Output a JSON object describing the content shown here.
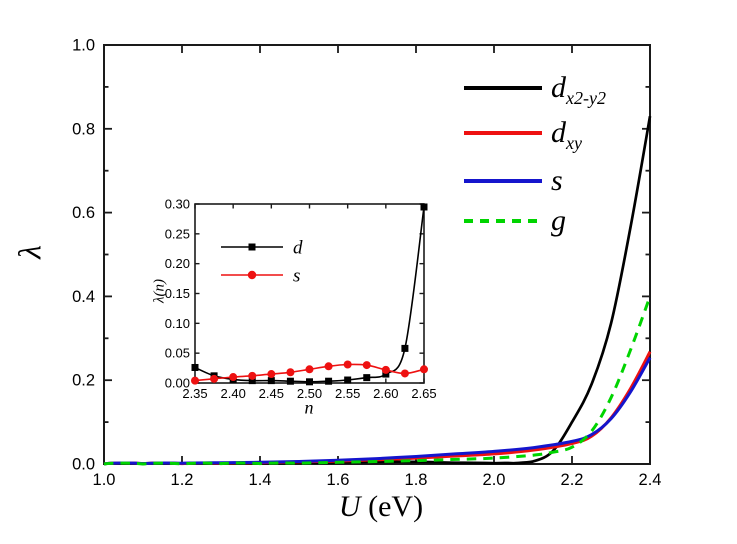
{
  "figure": {
    "background": "#ffffff",
    "axis_color": "#1a1a1a",
    "main": {
      "xlabel_italic": "U",
      "xlabel_roman": " (eV)",
      "ylabel": "λ",
      "x_ticks": [
        "1.0",
        "1.2",
        "1.4",
        "1.6",
        "1.8",
        "2.0",
        "2.2",
        "2.4"
      ],
      "y_ticks": [
        "0.0",
        "0.2",
        "0.4",
        "0.6",
        "0.8",
        "1.0"
      ],
      "legend": [
        {
          "label_main": "d",
          "label_sub": "x2-y2",
          "color": "#000000",
          "dash": "solid"
        },
        {
          "label_main": "d",
          "label_sub": "xy",
          "color": "#ee1111",
          "dash": "solid"
        },
        {
          "label_main": "s",
          "label_sub": "",
          "color": "#1515cd",
          "dash": "solid"
        },
        {
          "label_main": "g",
          "label_sub": "",
          "color": "#00d400",
          "dash": "dashed"
        }
      ]
    },
    "inset": {
      "xlabel": "n",
      "ylabel": "λ(n)",
      "x_ticks": [
        "2.35",
        "2.40",
        "2.45",
        "2.50",
        "2.55",
        "2.60",
        "2.65"
      ],
      "y_ticks": [
        "0.00",
        "0.05",
        "0.10",
        "0.15",
        "0.20",
        "0.25",
        "0.30"
      ],
      "legend": [
        {
          "label": "d",
          "color": "#000000",
          "marker": "square"
        },
        {
          "label": "s",
          "color": "#ee1111",
          "marker": "circle"
        }
      ]
    }
  },
  "chart_data": [
    {
      "type": "line",
      "title": "",
      "xlabel": "U (eV)",
      "ylabel": "λ",
      "xlim": [
        1.0,
        2.4
      ],
      "ylim": [
        0.0,
        1.0
      ],
      "x_major_step": 0.2,
      "y_major_step": 0.2,
      "y_minor_step": 0.1,
      "grid": false,
      "legend_position": "upper-right-inside",
      "series": [
        {
          "name": "d_x2-y2",
          "color": "#000000",
          "style": "solid",
          "width": 2.7,
          "points": [
            [
              1.0,
              0.0
            ],
            [
              1.1,
              0.001
            ],
            [
              1.2,
              0.001
            ],
            [
              1.3,
              0.002
            ],
            [
              1.4,
              0.002
            ],
            [
              1.5,
              0.003
            ],
            [
              1.6,
              0.004
            ],
            [
              1.7,
              0.005
            ],
            [
              1.8,
              0.005
            ],
            [
              1.9,
              0.003
            ],
            [
              2.0,
              0.002
            ],
            [
              2.05,
              0.002
            ],
            [
              2.1,
              0.006
            ],
            [
              2.15,
              0.03
            ],
            [
              2.2,
              0.1
            ],
            [
              2.25,
              0.19
            ],
            [
              2.3,
              0.335
            ],
            [
              2.35,
              0.565
            ],
            [
              2.4,
              0.83
            ]
          ]
        },
        {
          "name": "d_xy",
          "color": "#ee1111",
          "style": "solid",
          "width": 3.0,
          "points": [
            [
              1.0,
              0.0
            ],
            [
              1.1,
              0.001
            ],
            [
              1.2,
              0.001
            ],
            [
              1.3,
              0.002
            ],
            [
              1.4,
              0.003
            ],
            [
              1.5,
              0.005
            ],
            [
              1.6,
              0.007
            ],
            [
              1.7,
              0.01
            ],
            [
              1.8,
              0.014
            ],
            [
              1.9,
              0.019
            ],
            [
              2.0,
              0.024
            ],
            [
              2.1,
              0.033
            ],
            [
              2.2,
              0.049
            ],
            [
              2.25,
              0.066
            ],
            [
              2.3,
              0.11
            ],
            [
              2.35,
              0.18
            ],
            [
              2.4,
              0.268
            ]
          ]
        },
        {
          "name": "s",
          "color": "#1515cd",
          "style": "solid",
          "width": 3.0,
          "points": [
            [
              1.0,
              0.0
            ],
            [
              1.1,
              0.001
            ],
            [
              1.2,
              0.002
            ],
            [
              1.3,
              0.003
            ],
            [
              1.4,
              0.004
            ],
            [
              1.5,
              0.006
            ],
            [
              1.6,
              0.009
            ],
            [
              1.7,
              0.013
            ],
            [
              1.8,
              0.018
            ],
            [
              1.9,
              0.024
            ],
            [
              2.0,
              0.03
            ],
            [
              2.1,
              0.039
            ],
            [
              2.2,
              0.054
            ],
            [
              2.25,
              0.07
            ],
            [
              2.3,
              0.108
            ],
            [
              2.35,
              0.172
            ],
            [
              2.4,
              0.254
            ]
          ]
        },
        {
          "name": "g",
          "color": "#00d400",
          "style": "dashed",
          "width": 3.0,
          "points": [
            [
              1.0,
              0.0
            ],
            [
              1.1,
              0.0
            ],
            [
              1.2,
              0.0
            ],
            [
              1.3,
              0.001
            ],
            [
              1.4,
              0.001
            ],
            [
              1.5,
              0.002
            ],
            [
              1.6,
              0.004
            ],
            [
              1.7,
              0.006
            ],
            [
              1.8,
              0.008
            ],
            [
              1.9,
              0.011
            ],
            [
              2.0,
              0.014
            ],
            [
              2.1,
              0.021
            ],
            [
              2.15,
              0.028
            ],
            [
              2.2,
              0.04
            ],
            [
              2.25,
              0.078
            ],
            [
              2.3,
              0.158
            ],
            [
              2.35,
              0.272
            ],
            [
              2.4,
              0.4
            ]
          ]
        }
      ]
    },
    {
      "type": "line",
      "title": "",
      "xlabel": "n",
      "ylabel": "λ(n)",
      "xlim": [
        2.35,
        2.65
      ],
      "ylim": [
        0.0,
        0.3
      ],
      "x_major_step": 0.05,
      "y_major_step": 0.05,
      "grid": false,
      "legend_position": "upper-left-inside",
      "series": [
        {
          "name": "d",
          "color": "#000000",
          "style": "solid",
          "width": 1.6,
          "marker": "square",
          "marker_size": 7,
          "points": [
            [
              2.35,
              0.026
            ],
            [
              2.375,
              0.012
            ],
            [
              2.4,
              0.006
            ],
            [
              2.425,
              0.004
            ],
            [
              2.45,
              0.004
            ],
            [
              2.475,
              0.003
            ],
            [
              2.5,
              0.002
            ],
            [
              2.525,
              0.003
            ],
            [
              2.55,
              0.005
            ],
            [
              2.575,
              0.009
            ],
            [
              2.6,
              0.015
            ],
            [
              2.625,
              0.058
            ],
            [
              2.65,
              0.295
            ]
          ]
        },
        {
          "name": "s",
          "color": "#ee1111",
          "style": "solid",
          "width": 1.6,
          "marker": "circle",
          "marker_size": 8,
          "points": [
            [
              2.35,
              0.004
            ],
            [
              2.375,
              0.007
            ],
            [
              2.4,
              0.01
            ],
            [
              2.425,
              0.012
            ],
            [
              2.45,
              0.015
            ],
            [
              2.475,
              0.018
            ],
            [
              2.5,
              0.023
            ],
            [
              2.525,
              0.028
            ],
            [
              2.55,
              0.031
            ],
            [
              2.575,
              0.03
            ],
            [
              2.6,
              0.022
            ],
            [
              2.625,
              0.016
            ],
            [
              2.65,
              0.023
            ]
          ]
        }
      ]
    }
  ]
}
